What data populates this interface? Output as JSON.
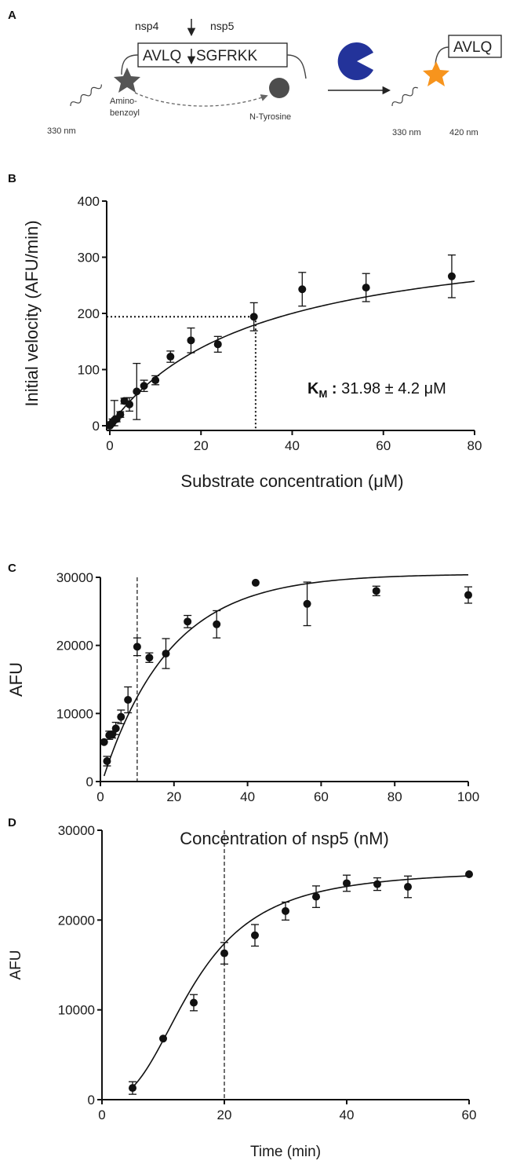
{
  "figure": {
    "panels": [
      "A",
      "B",
      "C",
      "D"
    ]
  },
  "schematic": {
    "cleavage_left": "nsp4",
    "cleavage_right": "nsp5",
    "seq_left": "AVLQ",
    "seq_right": "SGFRKK",
    "donor_label": "Amino-\nbenzoyl",
    "quencher_label": "N-Tyrosine",
    "ex_label_left": "330 nm",
    "product_seq": "AVLQ",
    "ex_label_right": "330 nm",
    "em_label": "420 nm",
    "icon_names": [
      "fluorophore-star-icon",
      "quencher-circle-icon",
      "protease-pacman-icon",
      "wavy-excitation-icon",
      "arrow-right-icon"
    ],
    "colors": {
      "donor": "#555555",
      "quencher": "#4d4d4d",
      "protease": "#23339a",
      "product_fluor": "#f7941d"
    }
  },
  "chart_data": [
    {
      "panel": "B",
      "type": "scatter",
      "xlabel": "Substrate concentration (μM)",
      "ylabel": "Initial velocity (AFU/min)",
      "xlim": [
        0,
        80
      ],
      "ylim": [
        0,
        400
      ],
      "xticks": [
        0,
        20,
        40,
        60,
        80
      ],
      "yticks": [
        0,
        100,
        200,
        300,
        400
      ],
      "points": [
        {
          "x": 0.0,
          "y": 0,
          "err": 2
        },
        {
          "x": 0.3,
          "y": 3,
          "err": 4
        },
        {
          "x": 0.6,
          "y": 6,
          "err": 6
        },
        {
          "x": 1.0,
          "y": 10,
          "err": 35
        },
        {
          "x": 1.5,
          "y": 12,
          "err": 5
        },
        {
          "x": 2.3,
          "y": 20,
          "err": 5
        },
        {
          "x": 3.2,
          "y": 44,
          "err": 5
        },
        {
          "x": 4.3,
          "y": 38,
          "err": 12
        },
        {
          "x": 5.9,
          "y": 61,
          "err": 50
        },
        {
          "x": 7.5,
          "y": 71,
          "err": 10
        },
        {
          "x": 10.0,
          "y": 81,
          "err": 8
        },
        {
          "x": 13.3,
          "y": 123,
          "err": 10
        },
        {
          "x": 17.8,
          "y": 152,
          "err": 22
        },
        {
          "x": 23.7,
          "y": 145,
          "err": 14
        },
        {
          "x": 31.6,
          "y": 194,
          "err": 25
        },
        {
          "x": 42.2,
          "y": 243,
          "err": 30
        },
        {
          "x": 56.2,
          "y": 246,
          "err": 25
        },
        {
          "x": 75.0,
          "y": 266,
          "err": 38
        }
      ],
      "fit": {
        "model": "michaelis-menten",
        "vmax": 360,
        "km": 31.98
      },
      "reference": {
        "x": 31.98,
        "y": 194
      },
      "annotation": {
        "label": "K",
        "subscript": "M",
        "colon": " :",
        "value": " 31.98 ± 4.2 μM"
      }
    },
    {
      "panel": "C",
      "type": "scatter",
      "xlabel": "Concentration of nsp5 (nM)",
      "ylabel": "AFU",
      "xlim": [
        0,
        100
      ],
      "ylim": [
        0,
        30000
      ],
      "xticks": [
        0,
        20,
        40,
        60,
        80,
        100
      ],
      "yticks": [
        0,
        10000,
        20000,
        30000
      ],
      "points": [
        {
          "x": 1.0,
          "y": 5800,
          "err": 0
        },
        {
          "x": 1.8,
          "y": 3000,
          "err": 700
        },
        {
          "x": 2.4,
          "y": 6800,
          "err": 600
        },
        {
          "x": 3.2,
          "y": 6900,
          "err": 500
        },
        {
          "x": 4.2,
          "y": 7800,
          "err": 900
        },
        {
          "x": 5.6,
          "y": 9500,
          "err": 1000
        },
        {
          "x": 7.5,
          "y": 12000,
          "err": 1900
        },
        {
          "x": 10.0,
          "y": 19800,
          "err": 1300
        },
        {
          "x": 13.3,
          "y": 18200,
          "err": 700
        },
        {
          "x": 17.8,
          "y": 18800,
          "err": 2200
        },
        {
          "x": 23.7,
          "y": 23500,
          "err": 900
        },
        {
          "x": 31.6,
          "y": 23100,
          "err": 2000
        },
        {
          "x": 42.2,
          "y": 29200,
          "err": 0
        },
        {
          "x": 56.2,
          "y": 26100,
          "err": 3200
        },
        {
          "x": 75.0,
          "y": 28000,
          "err": 700
        },
        {
          "x": 100.0,
          "y": 27400,
          "err": 1200
        }
      ],
      "fit": {
        "model": "saturation",
        "top": 30500,
        "k": 0.055,
        "x0": 0.5
      },
      "reference": {
        "x": 10
      }
    },
    {
      "panel": "D",
      "type": "scatter",
      "xlabel": "Time (min)",
      "ylabel": "AFU",
      "xlim": [
        0,
        60
      ],
      "ylim": [
        0,
        30000
      ],
      "xticks": [
        0,
        20,
        40,
        60
      ],
      "yticks": [
        0,
        10000,
        20000,
        30000
      ],
      "points": [
        {
          "x": 5,
          "y": 1300,
          "err": 700
        },
        {
          "x": 10,
          "y": 6800,
          "err": 0
        },
        {
          "x": 15,
          "y": 10800,
          "err": 900
        },
        {
          "x": 20,
          "y": 16300,
          "err": 1200
        },
        {
          "x": 25,
          "y": 18300,
          "err": 1200
        },
        {
          "x": 30,
          "y": 21000,
          "err": 1000
        },
        {
          "x": 35,
          "y": 22600,
          "err": 1200
        },
        {
          "x": 40,
          "y": 24100,
          "err": 900
        },
        {
          "x": 45,
          "y": 24000,
          "err": 700
        },
        {
          "x": 50,
          "y": 23700,
          "err": 1200
        },
        {
          "x": 60,
          "y": 25100,
          "err": 0
        }
      ],
      "fit": {
        "model": "sigmoid",
        "top": 25600,
        "x50": 15.0,
        "slope": 2.6
      },
      "reference": {
        "x": 20
      }
    }
  ]
}
